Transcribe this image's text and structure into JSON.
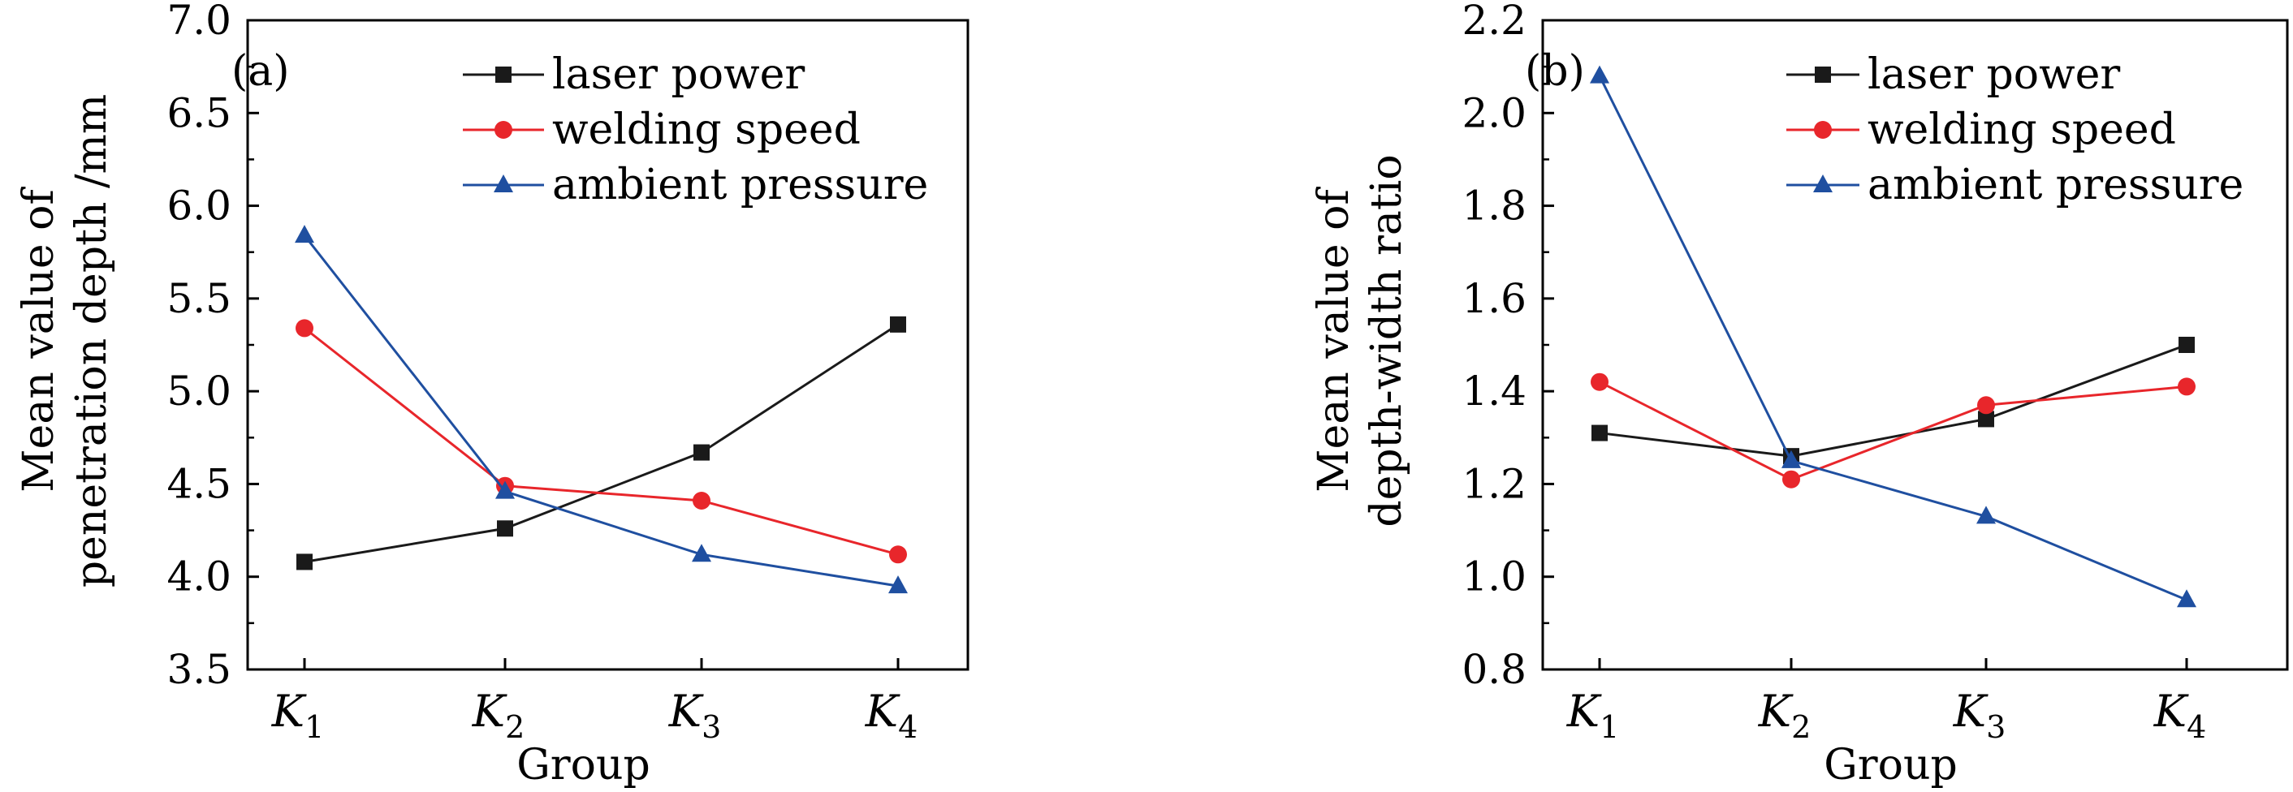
{
  "chart_data": [
    {
      "type": "line",
      "panel_label": "(a)",
      "xlabel": "Group",
      "ylabel": [
        "Mean value of",
        "penetration depth /mm"
      ],
      "categories": [
        {
          "main": "K",
          "sub": "1"
        },
        {
          "main": "K",
          "sub": "2"
        },
        {
          "main": "K",
          "sub": "3"
        },
        {
          "main": "K",
          "sub": "4"
        }
      ],
      "ylim": [
        3.5,
        7.0
      ],
      "yticks": [
        "3.5",
        "4.0",
        "4.5",
        "5.0",
        "5.5",
        "6.0",
        "6.5",
        "7.0"
      ],
      "legend_position": "top-right",
      "series": [
        {
          "name": "laser power",
          "color": "#1a1a1a",
          "marker": "square",
          "values": [
            4.08,
            4.26,
            4.67,
            5.36
          ]
        },
        {
          "name": "welding speed",
          "color": "#e8262b",
          "marker": "circle",
          "values": [
            5.34,
            4.49,
            4.41,
            4.12
          ]
        },
        {
          "name": "ambient pressure",
          "color": "#1f4fa0",
          "marker": "triangle",
          "values": [
            5.84,
            4.46,
            4.12,
            3.95
          ]
        }
      ]
    },
    {
      "type": "line",
      "panel_label": "(b)",
      "xlabel": "Group",
      "ylabel": [
        "Mean value of",
        "depth-width ratio"
      ],
      "categories": [
        {
          "main": "K",
          "sub": "1"
        },
        {
          "main": "K",
          "sub": "2"
        },
        {
          "main": "K",
          "sub": "3"
        },
        {
          "main": "K",
          "sub": "4"
        }
      ],
      "ylim": [
        0.8,
        2.2
      ],
      "yticks": [
        "0.8",
        "1.0",
        "1.2",
        "1.4",
        "1.6",
        "1.8",
        "2.0",
        "2.2"
      ],
      "legend_position": "top-right",
      "series": [
        {
          "name": "laser power",
          "color": "#1a1a1a",
          "marker": "square",
          "values": [
            1.31,
            1.26,
            1.34,
            1.5
          ]
        },
        {
          "name": "welding speed",
          "color": "#e8262b",
          "marker": "circle",
          "values": [
            1.42,
            1.21,
            1.37,
            1.41
          ]
        },
        {
          "name": "ambient pressure",
          "color": "#1f4fa0",
          "marker": "triangle",
          "values": [
            2.08,
            1.25,
            1.13,
            0.95
          ]
        }
      ]
    }
  ]
}
